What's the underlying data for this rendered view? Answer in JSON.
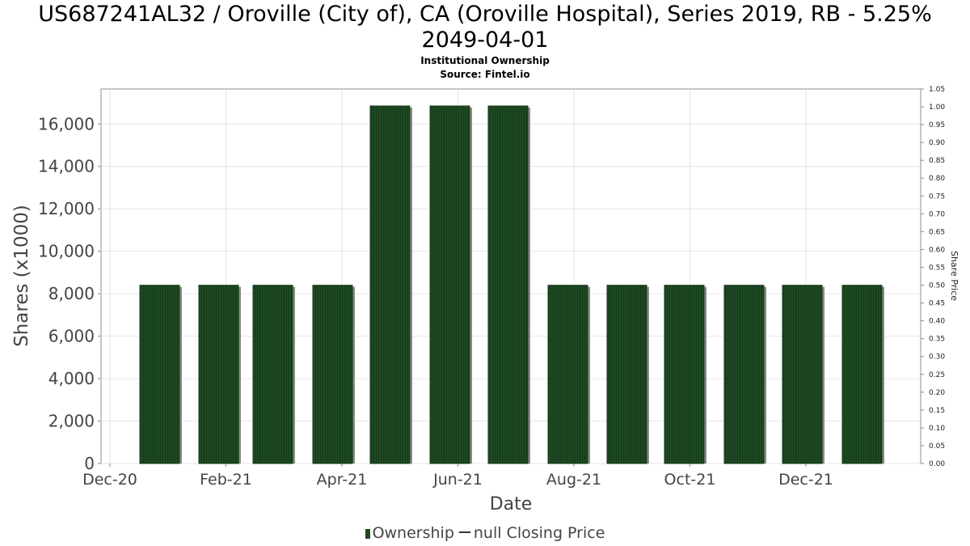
{
  "header": {
    "title_line1": "US687241AL32 / Oroville (City of), CA (Oroville Hospital), Series 2019, RB - 5.25%",
    "title_line2": "2049-04-01",
    "subtitle": "Institutional Ownership",
    "source": "Source: Fintel.io"
  },
  "legend": {
    "ownership": "Ownership",
    "closing_price": "null Closing Price"
  },
  "colors": {
    "bar": "#1e4a23",
    "bar_shadow": "#8a8a86",
    "grid": "#e6e6e6",
    "axis_text": "#444444"
  },
  "chart_data": {
    "type": "bar",
    "title": "US687241AL32 / Oroville (City of), CA (Oroville Hospital), Series 2019, RB - 5.25% 2049-04-01",
    "xlabel": "Date",
    "ylabel": "Shares (x1000)",
    "y2label": "Share Price",
    "ylim": [
      0,
      17650
    ],
    "y2lim": [
      0,
      1.05
    ],
    "grid": true,
    "legend_position": "bottom-center",
    "x_ticks": [
      "Dec-20",
      "Feb-21",
      "Apr-21",
      "Jun-21",
      "Aug-21",
      "Oct-21",
      "Dec-21"
    ],
    "y_ticks": [
      "0",
      "2,000",
      "4,000",
      "6,000",
      "8,000",
      "10,000",
      "12,000",
      "14,000",
      "16,000"
    ],
    "y2_ticks": [
      "0.00",
      "0.05",
      "0.10",
      "0.15",
      "0.20",
      "0.25",
      "0.30",
      "0.35",
      "0.40",
      "0.45",
      "0.50",
      "0.55",
      "0.60",
      "0.65",
      "0.70",
      "0.75",
      "0.80",
      "0.85",
      "0.90",
      "0.95",
      "1.00",
      "1.05"
    ],
    "series": [
      {
        "name": "Ownership",
        "values": [
          8400,
          8400,
          8400,
          8400,
          16850,
          16850,
          16850,
          8400,
          8400,
          8400,
          8400,
          8400,
          8400
        ]
      },
      {
        "name": "null Closing Price",
        "values": []
      }
    ]
  }
}
